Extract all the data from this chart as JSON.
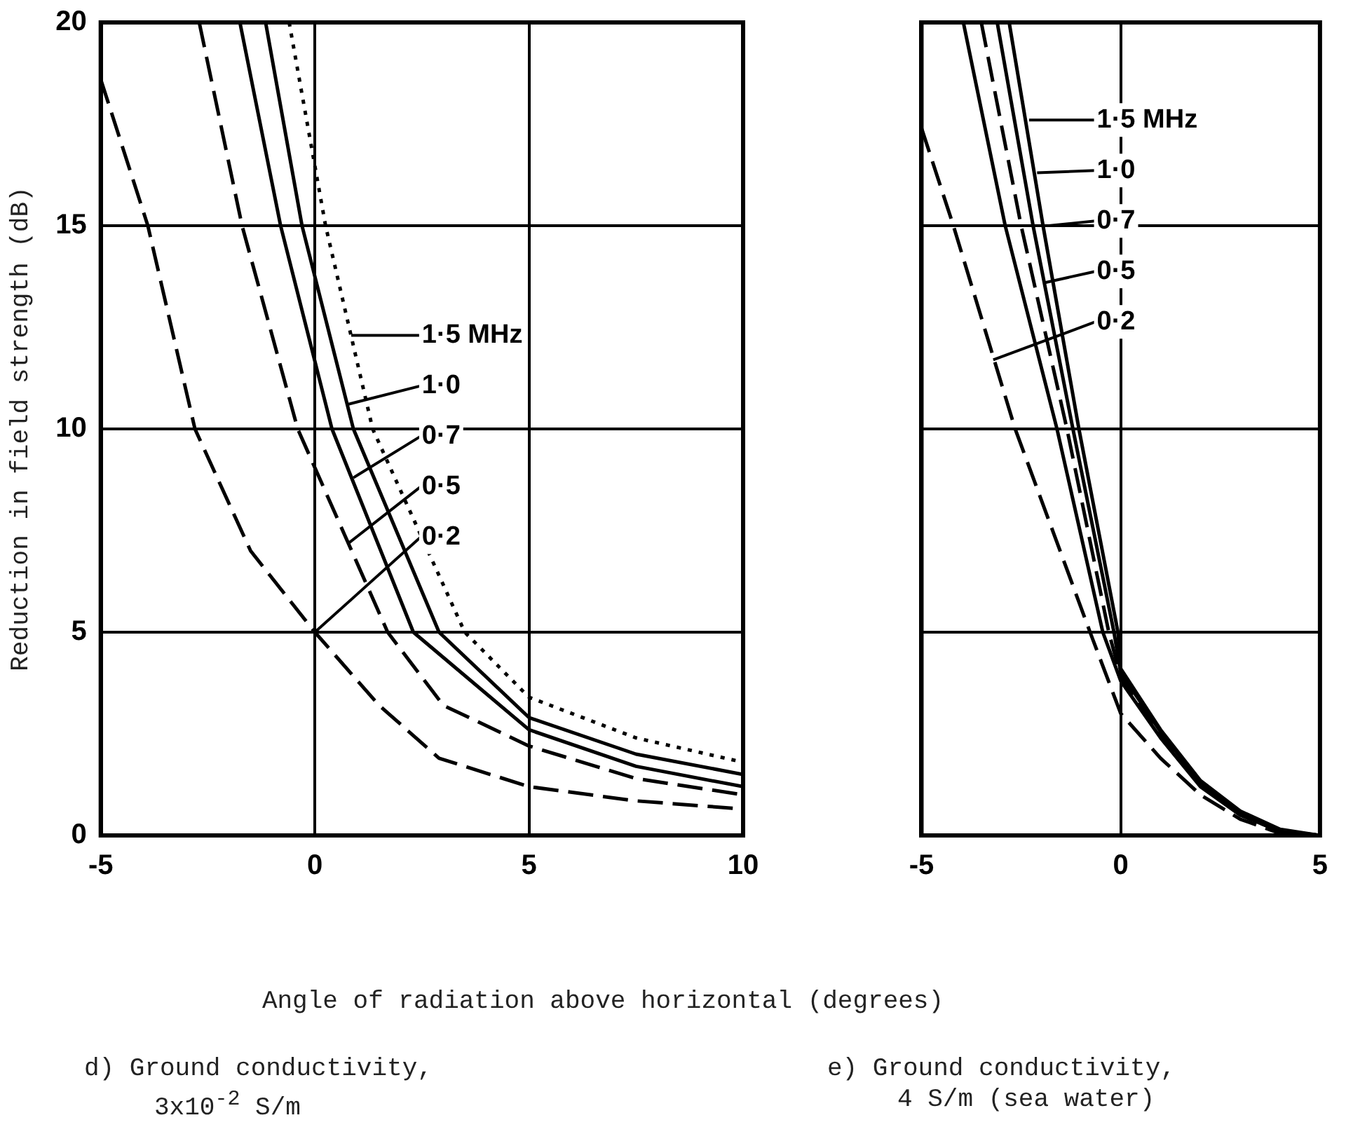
{
  "chart_data": [
    {
      "type": "line",
      "ylabel": "Reduction in field strength (dB)",
      "xlabel": "Angle of radiation above horizontal (degrees)",
      "xlim": [
        -5,
        10
      ],
      "ylim": [
        0,
        20
      ],
      "xticks": [
        -5,
        0,
        5,
        10
      ],
      "yticks": [
        0,
        5,
        10,
        15,
        20
      ],
      "grid": true,
      "series": [
        {
          "color": "#000000",
          "line_style": "dashed",
          "x": [
            -5,
            -3.9,
            -2.8,
            -1.5,
            0,
            1.5,
            2.9,
            5,
            7.5,
            10
          ],
          "values": [
            18.6,
            15,
            10,
            7,
            5,
            3.2,
            1.9,
            1.2,
            0.85,
            0.65
          ]
        },
        {
          "color": "#000000",
          "line_style": "dashed",
          "x": [
            -2.7,
            -1.7,
            -0.4,
            1.7,
            3,
            5,
            7.5,
            10
          ],
          "values": [
            20,
            15,
            10,
            5,
            3.2,
            2.2,
            1.4,
            1.0
          ]
        },
        {
          "color": "#000000",
          "line_style": "solid",
          "x": [
            -1.75,
            -0.8,
            0.4,
            2.3,
            5,
            7.5,
            10
          ],
          "values": [
            20,
            15,
            10,
            5,
            2.6,
            1.7,
            1.2
          ]
        },
        {
          "color": "#000000",
          "line_style": "solid",
          "x": [
            -1.15,
            -0.3,
            0.9,
            2.9,
            5,
            7.5,
            10
          ],
          "values": [
            20,
            15,
            10,
            5,
            2.9,
            2.0,
            1.5
          ]
        },
        {
          "color": "#000000",
          "line_style": "dotted",
          "x": [
            -0.6,
            0.25,
            1.35,
            3.5,
            5,
            7.5,
            10
          ],
          "values": [
            20,
            15,
            10,
            5,
            3.4,
            2.4,
            1.8
          ]
        }
      ],
      "annotations": [
        {
          "text": "1·5 MHz",
          "x": 0.85,
          "y": 12.3
        },
        {
          "text": "1·0",
          "x": 0.75,
          "y": 10.6
        },
        {
          "text": "0·7",
          "x": 0.9,
          "y": 8.8
        },
        {
          "text": "0·5",
          "x": 0.8,
          "y": 7.2
        },
        {
          "text": "0·2",
          "x": 0,
          "y": 5
        },
        "d) Ground conductivity, 3x10$^{-2}$ S/m"
      ]
    },
    {
      "type": "line",
      "xlim": [
        -5,
        5
      ],
      "ylim": [
        0,
        20
      ],
      "xticks": [
        -5,
        0,
        5
      ],
      "yticks": [
        0,
        5,
        10,
        15,
        20
      ],
      "grid": true,
      "tick_labels": "x",
      "series": [
        {
          "color": "#000000",
          "line_style": "dashed",
          "x": [
            -5,
            -4.2,
            -2.65,
            -0.77,
            0,
            1,
            2,
            3,
            4
          ],
          "values": [
            17.4,
            15,
            10,
            5,
            3.0,
            1.9,
            1.0,
            0.4,
            0.05
          ]
        },
        {
          "color": "#000000",
          "line_style": "solid",
          "x": [
            -3.95,
            -2.9,
            -1.6,
            -0.45,
            0,
            1,
            2,
            3,
            4,
            5
          ],
          "values": [
            20,
            15,
            10,
            5,
            3.8,
            2.4,
            1.2,
            0.5,
            0.1,
            0
          ]
        },
        {
          "color": "#000000",
          "line_style": "dashed",
          "x": [
            -3.5,
            -2.5,
            -1.35,
            -0.3,
            0,
            1,
            2,
            3,
            4,
            5
          ],
          "values": [
            20,
            15,
            10,
            5,
            3.9,
            2.5,
            1.25,
            0.5,
            0.1,
            0
          ]
        },
        {
          "color": "#000000",
          "line_style": "solid",
          "x": [
            -3.1,
            -2.2,
            -1.2,
            -0.17,
            0,
            1,
            2,
            3,
            4,
            5
          ],
          "values": [
            20,
            15,
            10,
            5,
            4.0,
            2.55,
            1.3,
            0.55,
            0.12,
            0
          ]
        },
        {
          "color": "#000000",
          "line_style": "solid",
          "x": [
            -2.8,
            -1.95,
            -1.05,
            -0.07,
            0,
            1,
            2,
            3,
            4,
            5
          ],
          "values": [
            20,
            15,
            10,
            5,
            4.1,
            2.6,
            1.35,
            0.6,
            0.15,
            0
          ]
        }
      ],
      "annotations": [
        {
          "text": "1·5 MHz",
          "x": -2.3,
          "y": 17.6
        },
        {
          "text": "1·0",
          "x": -2.1,
          "y": 16.3
        },
        {
          "text": "0·7",
          "x": -1.8,
          "y": 15
        },
        {
          "text": "0·5",
          "x": -1.9,
          "y": 13.6
        },
        {
          "text": "0·2",
          "x": -3.2,
          "y": 11.7
        },
        "e) Ground conductivity, 4 S/m (sea water)"
      ]
    }
  ]
}
